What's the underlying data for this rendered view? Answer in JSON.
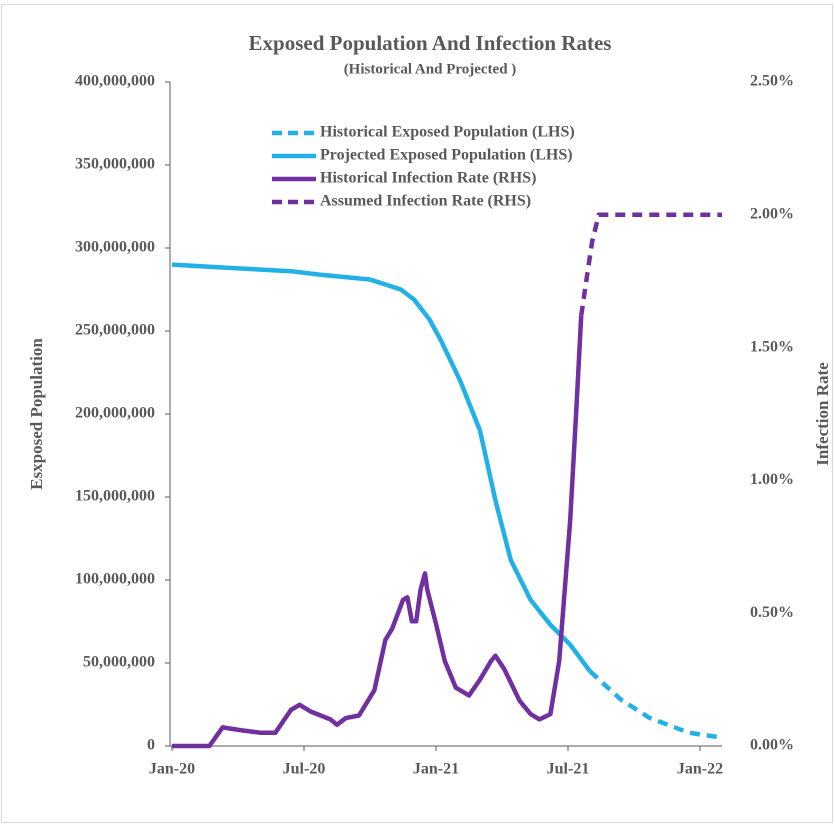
{
  "chart_data": {
    "type": "line",
    "title": "Exposed Population And Infection Rates",
    "subtitle": "(Historical And Projected )",
    "ylabel": "Esxposed Population",
    "y2label": "Infection Rate",
    "xlim": [
      0,
      25
    ],
    "xticks": [
      {
        "value": 0,
        "label": "Jan-20"
      },
      {
        "value": 6,
        "label": "Jul-20"
      },
      {
        "value": 12,
        "label": "Jan-21"
      },
      {
        "value": 18,
        "label": "Jul-21"
      },
      {
        "value": 24,
        "label": "Jan-22"
      }
    ],
    "ylim": [
      0,
      400000000
    ],
    "yticks": [
      0,
      {
        "value": 50000000,
        "label": "50,000,000"
      },
      {
        "value": 100000000,
        "label": "100,000,000"
      },
      {
        "value": 150000000,
        "label": "150,000,000"
      },
      {
        "value": 200000000,
        "label": "200,000,000"
      },
      {
        "value": 250000000,
        "label": "250,000,000"
      },
      {
        "value": 300000000,
        "label": "300,000,000"
      },
      {
        "value": 350000000,
        "label": "350,000,000"
      },
      {
        "value": 400000000,
        "label": "400,000,000"
      }
    ],
    "y2lim": [
      0,
      2.5
    ],
    "y2ticks": [
      {
        "value": 0,
        "label": "0.00%"
      },
      {
        "value": 0.5,
        "label": "0.50%"
      },
      {
        "value": 1,
        "label": "1.00%"
      },
      {
        "value": 1.5,
        "label": "1.50%"
      },
      {
        "value": 2,
        "label": "2.00%"
      },
      {
        "value": 2.5,
        "label": "2.50%"
      }
    ],
    "series": [
      {
        "name": "Historical Exposed Population (LHS)",
        "color": "#21b1e6",
        "dashed": true,
        "x": [
          19,
          20.4,
          21.7,
          23.5,
          25
        ],
        "values": [
          45000000,
          28000000,
          17000000,
          8000000,
          5000000
        ]
      },
      {
        "name": "Projected Exposed Population (LHS)",
        "color": "#21b1e6",
        "dashed": false,
        "x": [
          0,
          2.6,
          5.4,
          6.7,
          9,
          10.4,
          11,
          11.7,
          12.2,
          13.1,
          14,
          14.7,
          15.4,
          16.3,
          17.2,
          18.1,
          19
        ],
        "values": [
          290000000,
          288000000,
          286000000,
          284000000,
          281000000,
          275000000,
          269000000,
          257000000,
          245000000,
          220000000,
          190000000,
          148000000,
          112000000,
          88000000,
          73000000,
          61000000,
          45000000
        ]
      },
      {
        "name": "Historical Infection Rate (RHS)",
        "color": "#7030a0",
        "dashed": false,
        "axis": "y2",
        "x": [
          0,
          1.7,
          2.3,
          3.1,
          4,
          4.7,
          5.4,
          5.8,
          6.3,
          7.2,
          7.5,
          7.9,
          8.5,
          9.2,
          9.7,
          10,
          10.5,
          10.7,
          10.9,
          11.1,
          11.3,
          11.5,
          11.6,
          12,
          12.4,
          12.9,
          13.5,
          14,
          14.5,
          14.7,
          15.1,
          15.8,
          16.3,
          16.7,
          17.2,
          17.6,
          18.1,
          18.4,
          18.6
        ],
        "values": [
          0,
          0,
          0.07,
          0.06,
          0.05,
          0.05,
          0.135,
          0.155,
          0.13,
          0.1,
          0.08,
          0.105,
          0.115,
          0.21,
          0.4,
          0.44,
          0.55,
          0.56,
          0.47,
          0.47,
          0.59,
          0.65,
          0.59,
          0.46,
          0.32,
          0.22,
          0.19,
          0.25,
          0.32,
          0.34,
          0.29,
          0.17,
          0.12,
          0.1,
          0.12,
          0.32,
          0.85,
          1.3,
          1.62
        ]
      },
      {
        "name": "Assumed Infection Rate (RHS)",
        "color": "#7030a0",
        "dashed": true,
        "axis": "y2",
        "x": [
          18.6,
          18.9,
          19.1,
          19.4,
          25
        ],
        "values": [
          1.62,
          1.79,
          1.9,
          2.0,
          2.0
        ]
      }
    ]
  }
}
